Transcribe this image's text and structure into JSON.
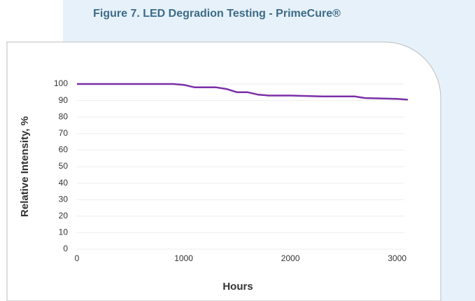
{
  "chart_data": {
    "type": "line",
    "title": "Figure 7. LED Degradion Testing - PrimeCure®",
    "ylabel": "Relative Intensity, %",
    "xlabel": "Hours",
    "x": [
      0,
      700,
      900,
      1000,
      1100,
      1300,
      1400,
      1500,
      1600,
      1700,
      1800,
      2000,
      2300,
      2600,
      2700,
      3000,
      3100
    ],
    "values": [
      100,
      100,
      100,
      99.5,
      98,
      98,
      97,
      95,
      95,
      93.5,
      93,
      93,
      92.5,
      92.5,
      91.5,
      91,
      90.5
    ],
    "color": "#7b2fa8",
    "xlim": [
      0,
      3100
    ],
    "ylim": [
      0,
      100
    ],
    "xticks": [
      0,
      1000,
      2000,
      3000
    ],
    "yticks": [
      0,
      10,
      20,
      30,
      40,
      50,
      60,
      70,
      80,
      90,
      100
    ],
    "grid": true
  }
}
